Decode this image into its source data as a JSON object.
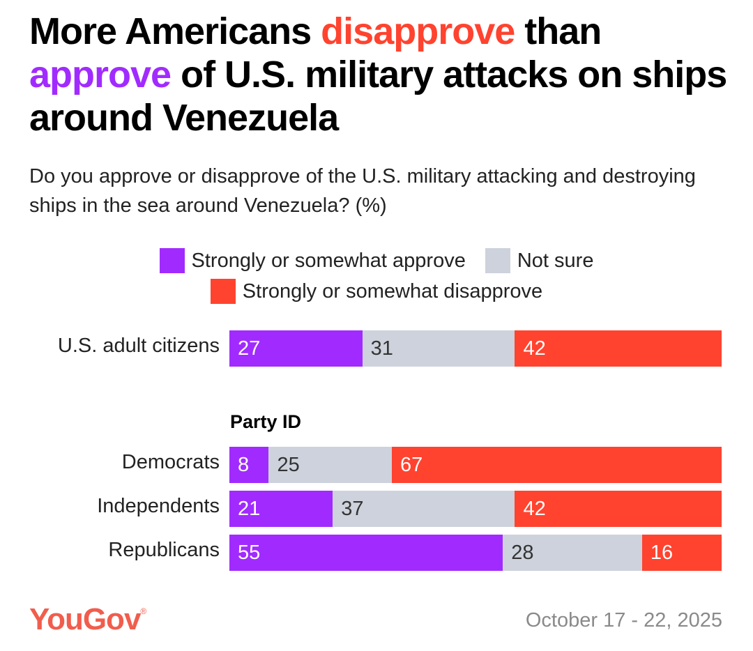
{
  "header": {
    "title_parts": [
      {
        "text": "More Americans ",
        "style": "plain"
      },
      {
        "text": "disapprove",
        "style": "dis"
      },
      {
        "text": " than ",
        "style": "plain"
      },
      {
        "text": "approve",
        "style": "app"
      },
      {
        "text": " of U.S. military attacks on ships around Venezuela",
        "style": "plain"
      }
    ],
    "subtitle": "Do you approve or disapprove of the U.S. military attacking and destroying ships in the sea around Venezuela? (%)"
  },
  "colors": {
    "approve": "#a12bff",
    "not_sure": "#cdd2dc",
    "disapprove": "#ff432f",
    "label_on_dark": "#ffffff",
    "label_on_light": "#333333",
    "brand": "#f15d4d"
  },
  "chart_data": {
    "type": "bar",
    "orientation": "horizontal-stacked-100",
    "title": "More Americans disapprove than approve of U.S. military attacks on ships around Venezuela",
    "subtitle": "Do you approve or disapprove of the U.S. military attacking and destroying ships in the sea around Venezuela? (%)",
    "legend": {
      "placement": "top-center",
      "entries": [
        "Strongly or somewhat approve",
        "Not sure",
        "Strongly or somewhat disapprove"
      ]
    },
    "xlim": [
      0,
      100
    ],
    "grid": false,
    "series": [
      {
        "name": "Strongly or somewhat approve",
        "key": "approve"
      },
      {
        "name": "Not sure",
        "key": "not_sure"
      },
      {
        "name": "Strongly or somewhat disapprove",
        "key": "disapprove"
      }
    ],
    "rows": [
      {
        "group": null,
        "category": "U.S. adult citizens",
        "values": [
          27,
          31,
          42
        ]
      },
      {
        "group": "Party ID",
        "category": "Democrats",
        "values": [
          8,
          25,
          67
        ]
      },
      {
        "group": "Party ID",
        "category": "Independents",
        "values": [
          21,
          37,
          42
        ]
      },
      {
        "group": "Party ID",
        "category": "Republicans",
        "values": [
          55,
          28,
          16
        ]
      }
    ],
    "group_header": "Party ID"
  },
  "footer": {
    "brand": "YouGov",
    "brand_mark": "®",
    "date": "October 17 - 22, 2025"
  }
}
